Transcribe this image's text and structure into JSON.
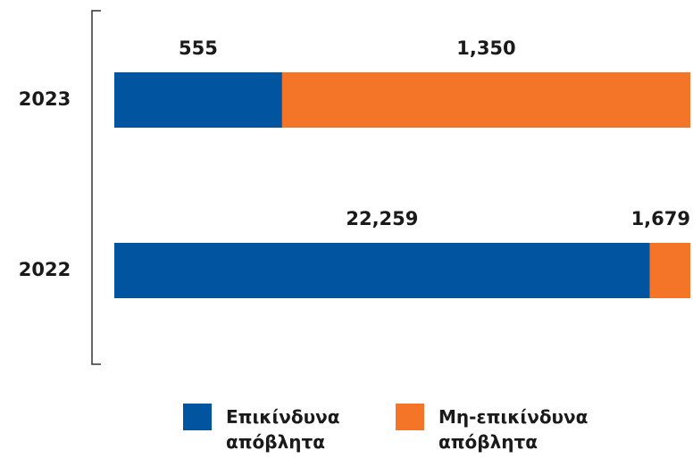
{
  "chart_data": {
    "type": "bar",
    "orientation": "horizontal",
    "stacked": "percent",
    "categories": [
      "2023",
      "2022"
    ],
    "series": [
      {
        "name": "Επικίνδυνα απόβλητα",
        "color": "#0054a0",
        "values": [
          555,
          22259
        ],
        "value_labels": [
          "555",
          "22,259"
        ]
      },
      {
        "name": "Μη-επικίνδυνα απόβλητα",
        "color": "#f47428",
        "values": [
          1350,
          1679
        ],
        "value_labels": [
          "1,350",
          "1,679"
        ]
      }
    ]
  }
}
